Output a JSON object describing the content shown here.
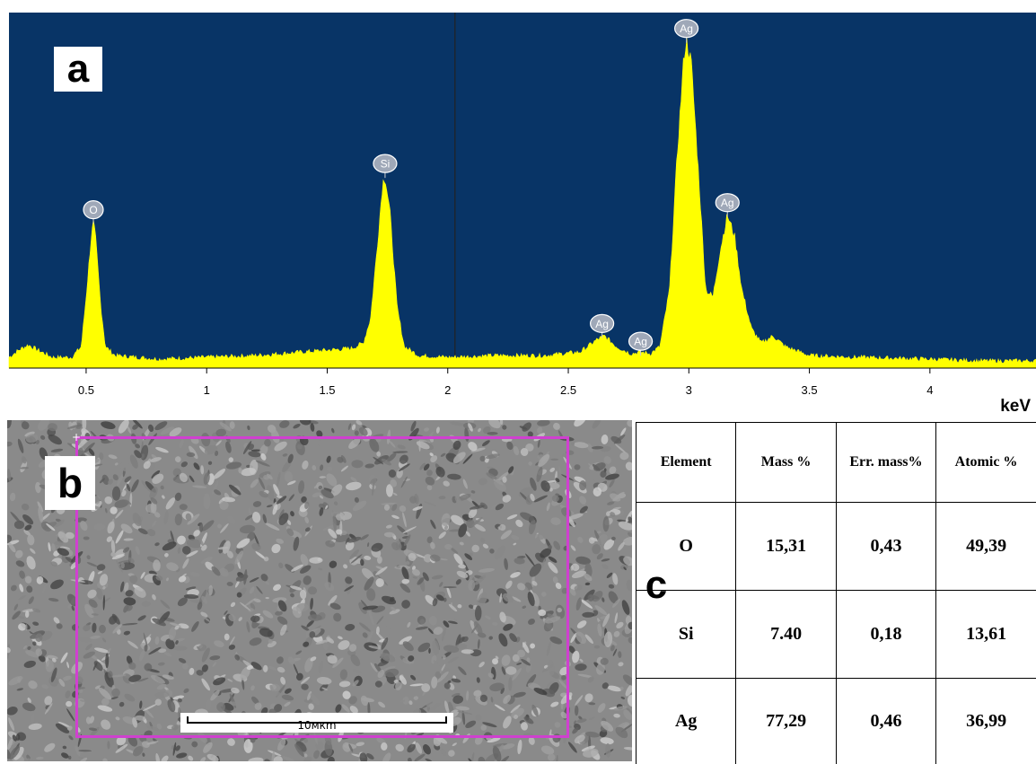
{
  "chart_data": {
    "type": "line",
    "title": "",
    "xlabel": "keV",
    "ylabel": "",
    "xlim": [
      0.18,
      4.44
    ],
    "ylim": [
      0,
      1.0
    ],
    "x_ticks": [
      0.5,
      1,
      1.5,
      2,
      2.5,
      3,
      3.5,
      4
    ],
    "x_tick_labels": [
      "0.5",
      "1",
      "1.5",
      "2",
      "2.5",
      "3",
      "3.5",
      "4"
    ],
    "grid": false,
    "background_color": "#083466",
    "fill_color": "#ffff00",
    "baseline": 0.03,
    "peaks": [
      {
        "label": "O",
        "x": 0.53,
        "y": 0.41
      },
      {
        "label": "Si",
        "x": 1.74,
        "y": 0.54
      },
      {
        "label": "Ag",
        "x": 2.64,
        "y": 0.09
      },
      {
        "label": "Ag",
        "x": 2.8,
        "y": 0.04
      },
      {
        "label": "Ag",
        "x": 2.99,
        "y": 0.92
      },
      {
        "label": "Ag",
        "x": 3.16,
        "y": 0.43
      }
    ],
    "series": [
      {
        "values": [
          [
            0.18,
            0.03
          ],
          [
            0.22,
            0.05
          ],
          [
            0.26,
            0.065
          ],
          [
            0.3,
            0.05
          ],
          [
            0.36,
            0.03
          ],
          [
            0.44,
            0.03
          ],
          [
            0.48,
            0.06
          ],
          [
            0.5,
            0.2
          ],
          [
            0.52,
            0.36
          ],
          [
            0.53,
            0.41
          ],
          [
            0.54,
            0.36
          ],
          [
            0.56,
            0.18
          ],
          [
            0.58,
            0.06
          ],
          [
            0.62,
            0.035
          ],
          [
            0.8,
            0.025
          ],
          [
            1.0,
            0.03
          ],
          [
            1.2,
            0.035
          ],
          [
            1.4,
            0.045
          ],
          [
            1.5,
            0.05
          ],
          [
            1.6,
            0.055
          ],
          [
            1.65,
            0.07
          ],
          [
            1.68,
            0.14
          ],
          [
            1.71,
            0.36
          ],
          [
            1.73,
            0.52
          ],
          [
            1.74,
            0.54
          ],
          [
            1.76,
            0.44
          ],
          [
            1.79,
            0.17
          ],
          [
            1.82,
            0.06
          ],
          [
            1.88,
            0.035
          ],
          [
            2.0,
            0.03
          ],
          [
            2.2,
            0.035
          ],
          [
            2.4,
            0.035
          ],
          [
            2.55,
            0.045
          ],
          [
            2.62,
            0.08
          ],
          [
            2.65,
            0.09
          ],
          [
            2.7,
            0.06
          ],
          [
            2.76,
            0.04
          ],
          [
            2.8,
            0.045
          ],
          [
            2.84,
            0.04
          ],
          [
            2.88,
            0.06
          ],
          [
            2.92,
            0.22
          ],
          [
            2.95,
            0.58
          ],
          [
            2.98,
            0.88
          ],
          [
            2.99,
            0.92
          ],
          [
            3.01,
            0.86
          ],
          [
            3.04,
            0.55
          ],
          [
            3.07,
            0.22
          ],
          [
            3.1,
            0.2
          ],
          [
            3.13,
            0.33
          ],
          [
            3.16,
            0.43
          ],
          [
            3.19,
            0.37
          ],
          [
            3.22,
            0.22
          ],
          [
            3.26,
            0.11
          ],
          [
            3.3,
            0.07
          ],
          [
            3.35,
            0.09
          ],
          [
            3.4,
            0.06
          ],
          [
            3.5,
            0.035
          ],
          [
            3.7,
            0.03
          ],
          [
            4.0,
            0.025
          ],
          [
            4.2,
            0.02
          ],
          [
            4.44,
            0.02
          ]
        ]
      }
    ]
  },
  "panel_labels": {
    "a": "a",
    "b": "b",
    "c": "c"
  },
  "sem": {
    "scale_bar": "10мкm",
    "roi_color": "#d040d0"
  },
  "table": {
    "headers": [
      "Element",
      "Mass %",
      "Err. mass%",
      "Atomic %"
    ],
    "rows": [
      [
        "O",
        "15,31",
        "0,43",
        "49,39"
      ],
      [
        "Si",
        "7.40",
        "0,18",
        "13,61"
      ],
      [
        "Ag",
        "77,29",
        "0,46",
        "36,99"
      ]
    ]
  }
}
